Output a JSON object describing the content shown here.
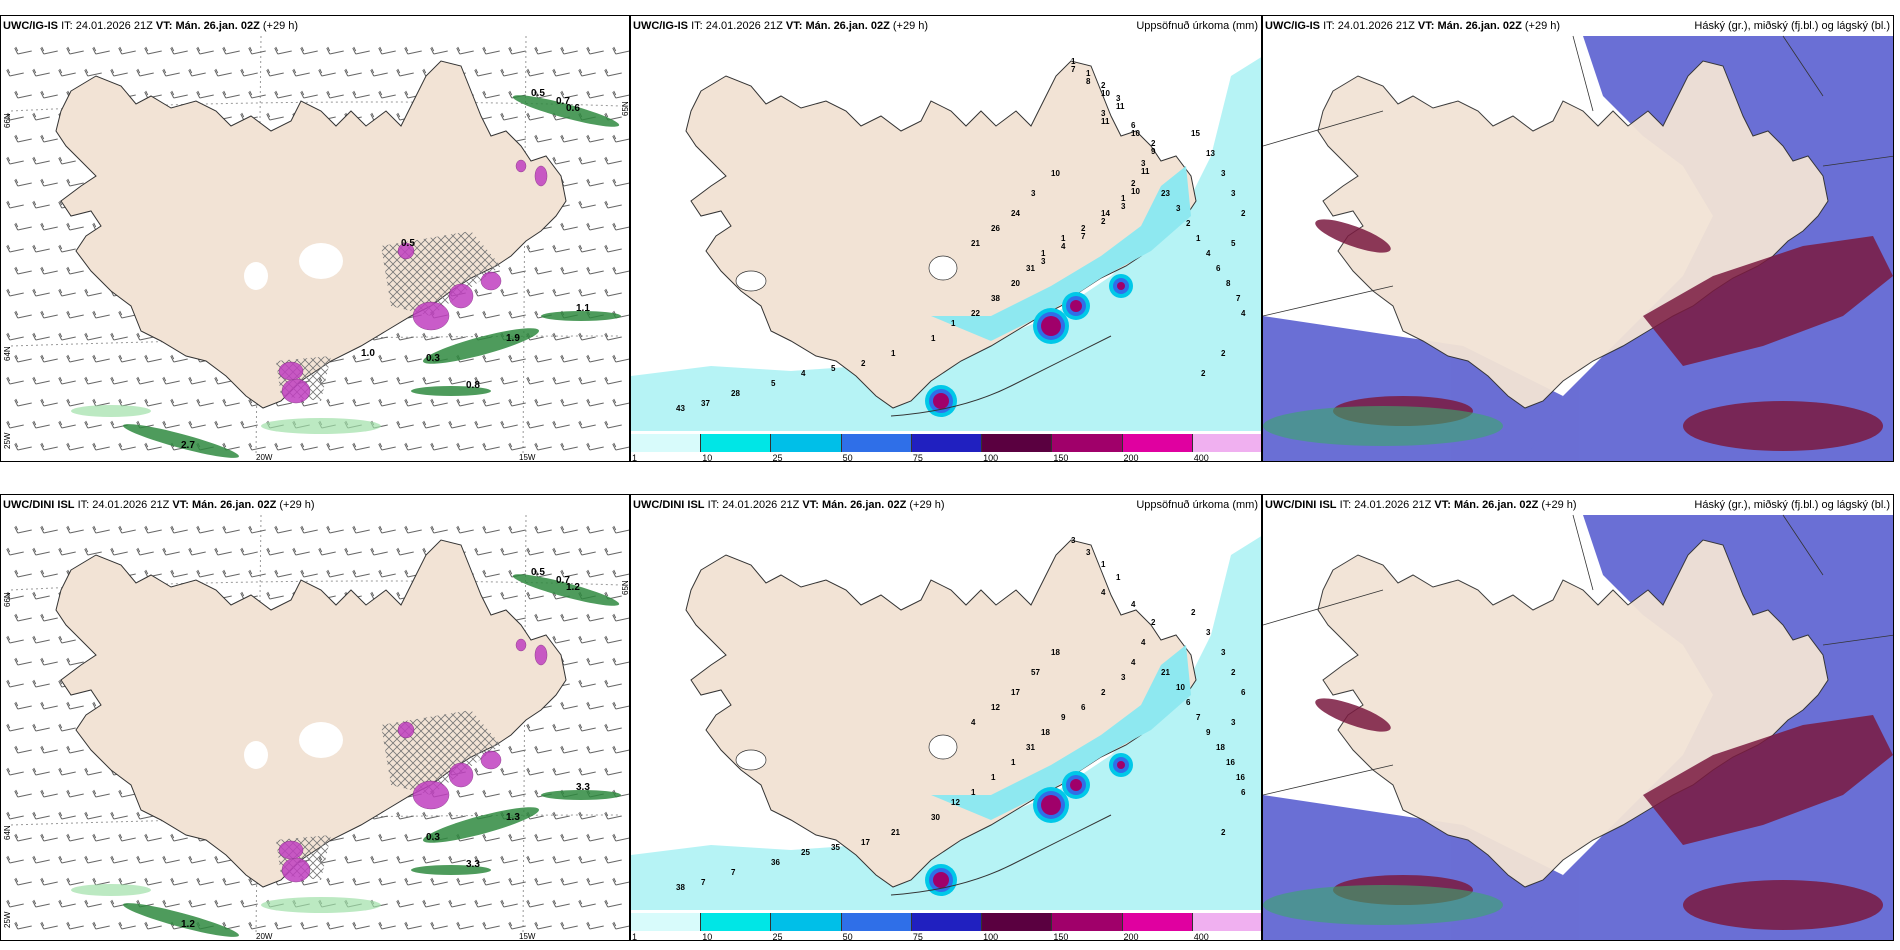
{
  "panels": [
    {
      "id": "top-left",
      "model": "UWC/IG-IS",
      "it_label": "IT:",
      "it_value": "24.01.2026 21Z",
      "vt_label": "VT:",
      "vt_value": "Mán. 26.jan. 02Z",
      "lead": "(+29 h)",
      "right_title": "",
      "lon_labels": [
        "20W",
        "15W"
      ],
      "lat_labels": [
        "66N",
        "65N",
        "64N",
        "25W"
      ],
      "numbers": [
        "0.5",
        "0.7",
        "0.6",
        "1.1",
        "1.9",
        "0.8",
        "0.3",
        "2.7",
        "0.5",
        "1.0"
      ]
    },
    {
      "id": "top-mid",
      "model": "UWC/IG-IS",
      "it_label": "IT:",
      "it_value": "24.01.2026 21Z",
      "vt_label": "VT:",
      "vt_value": "Mán. 26.jan. 02Z",
      "lead": "(+29 h)",
      "right_title": "Uppsöfnuð úrkoma (mm)",
      "numbers": [
        "1",
        "1",
        "2",
        "3",
        "3",
        "6",
        "2",
        "3",
        "2",
        "1",
        "14",
        "2",
        "1",
        "1",
        "31",
        "20",
        "38",
        "22",
        "1",
        "1",
        "1",
        "2",
        "5",
        "4",
        "5",
        "28",
        "37",
        "43",
        "23",
        "3",
        "2",
        "1",
        "4",
        "6",
        "8",
        "7",
        "4",
        "10",
        "3",
        "24",
        "26",
        "21",
        "15",
        "13",
        "3",
        "3",
        "2",
        "5",
        "2",
        "2",
        "7",
        "8",
        "10",
        "11",
        "11",
        "10",
        "9",
        "11",
        "10",
        "3",
        "2",
        "7",
        "4",
        "3"
      ]
    },
    {
      "id": "top-right",
      "model": "UWC/IG-IS",
      "it_label": "IT:",
      "it_value": "24.01.2026 21Z",
      "vt_label": "VT:",
      "vt_value": "Mán. 26.jan. 02Z",
      "lead": "(+29 h)",
      "right_title": "Háský (gr.), miðský (fj.bl.) og lágský (bl.)"
    },
    {
      "id": "bottom-left",
      "model": "UWC/DINI ISL",
      "it_label": "IT:",
      "it_value": "24.01.2026 21Z",
      "vt_label": "VT:",
      "vt_value": "Mán. 26.jan. 02Z",
      "lead": "(+29 h)",
      "right_title": "",
      "lon_labels": [
        "20W",
        "15W"
      ],
      "lat_labels": [
        "66N",
        "65N",
        "64N",
        "25W"
      ],
      "numbers": [
        "0.5",
        "0.7",
        "1.2",
        "3.3",
        "1.3",
        "3.3",
        "0.3",
        "1.2"
      ]
    },
    {
      "id": "bottom-mid",
      "model": "UWC/DINI ISL",
      "it_label": "IT:",
      "it_value": "24.01.2026 21Z",
      "vt_label": "VT:",
      "vt_value": "Mán. 26.jan. 02Z",
      "lead": "(+29 h)",
      "right_title": "Uppsöfnuð úrkoma (mm)",
      "numbers": [
        "3",
        "3",
        "1",
        "1",
        "4",
        "4",
        "2",
        "4",
        "4",
        "3",
        "2",
        "6",
        "9",
        "18",
        "31",
        "1",
        "1",
        "1",
        "12",
        "30",
        "21",
        "17",
        "35",
        "25",
        "36",
        "7",
        "7",
        "38",
        "21",
        "10",
        "6",
        "7",
        "9",
        "18",
        "16",
        "16",
        "6",
        "18",
        "57",
        "17",
        "12",
        "4",
        "2",
        "3",
        "3",
        "2",
        "6",
        "3",
        "2"
      ]
    },
    {
      "id": "bottom-right",
      "model": "UWC/DINI ISL",
      "it_label": "IT:",
      "it_value": "24.01.2026 21Z",
      "vt_label": "VT:",
      "vt_value": "Mán. 26.jan. 02Z",
      "lead": "(+29 h)",
      "right_title": "Háský (gr.), miðský (fj.bl.) og lágský (bl.)"
    }
  ],
  "colorbar": {
    "ticks": [
      "1",
      "10",
      "25",
      "50",
      "75",
      "100",
      "150",
      "200",
      "400"
    ],
    "colors": [
      "#d8fbfb",
      "#00e6e6",
      "#00bfe8",
      "#2f6fe8",
      "#2020c0",
      "#5a0040",
      "#a0006a",
      "#e000a0",
      "#f0b0f0"
    ]
  },
  "colors": {
    "land": "#f2e3d5",
    "sea_precip": "#b6f3f5",
    "wind_green": "#2f8a3f",
    "precip_magenta": "#c040c0",
    "cloud_blue": "#5a5fd0",
    "cloud_maroon": "#7a1a40"
  }
}
